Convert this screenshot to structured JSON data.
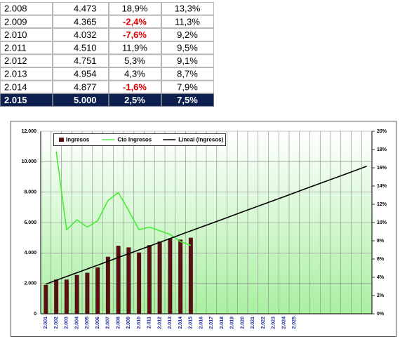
{
  "table": {
    "rows": [
      [
        "2.008",
        "4.473",
        "18,9%",
        "13,3%"
      ],
      [
        "2.009",
        "4.365",
        "-2,4%",
        "11,3%"
      ],
      [
        "2.010",
        "4.032",
        "-7,6%",
        "9,2%"
      ],
      [
        "2.011",
        "4.510",
        "11,9%",
        "9,5%"
      ],
      [
        "2.012",
        "4.751",
        "5,3%",
        "9,1%"
      ],
      [
        "2.013",
        "4.954",
        "4,3%",
        "8,7%"
      ],
      [
        "2.014",
        "4.877",
        "-1,6%",
        "7,9%"
      ],
      [
        "2.015",
        "5.000",
        "2,5%",
        "7,5%"
      ]
    ]
  },
  "chart_data": {
    "type": "bar-line",
    "categories": [
      "2.001",
      "2.002",
      "2.003",
      "2.004",
      "2.005",
      "2.006",
      "2.007",
      "2.008",
      "2.009",
      "2.010",
      "2.011",
      "2.012",
      "2.013",
      "2.014",
      "2.015",
      "2.016",
      "2.017",
      "2.018",
      "2.019",
      "2.020",
      "2.021",
      "2.022",
      "2.023",
      "2.024",
      "2.025",
      null,
      null,
      null,
      null,
      null,
      null,
      null
    ],
    "series": [
      {
        "name": "Ingresos",
        "type": "bar",
        "color": "#5a0f14",
        "values": [
          1900,
          2250,
          2250,
          2550,
          2700,
          3050,
          3750,
          4473,
          4365,
          4032,
          4510,
          4751,
          4954,
          4877,
          5000,
          null,
          null,
          null,
          null,
          null,
          null,
          null,
          null,
          null,
          null,
          null,
          null,
          null,
          null,
          null,
          null,
          null
        ]
      },
      {
        "name": "Cto Ingresos",
        "type": "line",
        "axis": "y2",
        "color": "#44ee33",
        "values": [
          null,
          17.8,
          9.2,
          10.3,
          9.5,
          10.2,
          12.4,
          13.3,
          11.3,
          9.2,
          9.5,
          9.1,
          8.7,
          7.9,
          7.5,
          null,
          null,
          null,
          null,
          null,
          null,
          null,
          null,
          null,
          null,
          null,
          null,
          null,
          null,
          null,
          null,
          null
        ]
      },
      {
        "name": "Lineal (Ingresos)",
        "type": "line",
        "color": "#000000",
        "values": [
          1950,
          2200,
          2450,
          2700,
          2950,
          3200,
          3450,
          3700,
          3950,
          4200,
          4450,
          4700,
          4950,
          5200,
          5450,
          5700,
          5950,
          6200,
          6450,
          6700,
          6950,
          7200,
          7450,
          7700,
          7950,
          8200,
          8450,
          8700,
          8950,
          9200,
          9450,
          9700
        ]
      }
    ],
    "ylim": [
      0,
      12000
    ],
    "yticks": [
      0,
      {
        "value": 2000,
        "label": "2.000"
      },
      {
        "value": 4000,
        "label": "4.000"
      },
      {
        "value": 6000,
        "label": "6.000"
      },
      {
        "value": 8000,
        "label": "8.000"
      },
      {
        "value": 10000,
        "label": "10.000"
      },
      {
        "value": 12000,
        "label": "12.000"
      }
    ],
    "y2lim": [
      0,
      20
    ],
    "y2ticks": [
      {
        "value": 0,
        "label": "0%"
      },
      {
        "value": 2,
        "label": "2%"
      },
      {
        "value": 4,
        "label": "4%"
      },
      {
        "value": 6,
        "label": "6%"
      },
      {
        "value": 8,
        "label": "8%"
      },
      {
        "value": 10,
        "label": "10%"
      },
      {
        "value": 12,
        "label": "12%"
      },
      {
        "value": 14,
        "label": "14%"
      },
      {
        "value": 16,
        "label": "16%"
      },
      {
        "value": 18,
        "label": "18%"
      },
      {
        "value": 20,
        "label": "20%"
      }
    ],
    "grid": true,
    "legend": "top"
  }
}
